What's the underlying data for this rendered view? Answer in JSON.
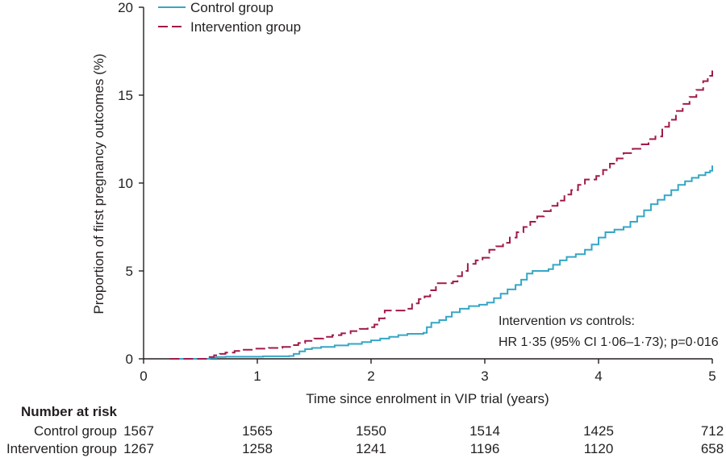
{
  "chart_data": {
    "type": "line",
    "step": true,
    "xlabel": "Time since enrolment in VIP trial (years)",
    "ylabel": "Proportion of first pregnancy outcomes (%)",
    "xlim": [
      0,
      5
    ],
    "ylim": [
      0,
      20
    ],
    "xticks": [
      0,
      1,
      2,
      3,
      4,
      5
    ],
    "yticks": [
      0,
      5,
      10,
      15,
      20
    ],
    "grid": false,
    "legend_position": "top-left",
    "series": [
      {
        "name": "Control group",
        "color": "#36a6c6",
        "dashed": false,
        "x": [
          0.23,
          0.58,
          0.64,
          0.72,
          1.05,
          1.28,
          1.32,
          1.37,
          1.42,
          1.48,
          1.56,
          1.68,
          1.8,
          1.92,
          2.0,
          2.08,
          2.16,
          2.24,
          2.32,
          2.46,
          2.49,
          2.53,
          2.6,
          2.66,
          2.71,
          2.78,
          2.86,
          2.95,
          3.02,
          3.08,
          3.14,
          3.2,
          3.27,
          3.32,
          3.37,
          3.42,
          3.56,
          3.6,
          3.66,
          3.72,
          3.8,
          3.88,
          3.94,
          4.0,
          4.06,
          4.14,
          4.22,
          4.28,
          4.34,
          4.4,
          4.46,
          4.52,
          4.58,
          4.64,
          4.7,
          4.76,
          4.82,
          4.88,
          4.94,
          4.98,
          5.0
        ],
        "y": [
          0,
          0.05,
          0.1,
          0.12,
          0.14,
          0.16,
          0.28,
          0.42,
          0.55,
          0.62,
          0.68,
          0.76,
          0.85,
          0.95,
          1.05,
          1.15,
          1.25,
          1.35,
          1.42,
          1.48,
          1.8,
          2.05,
          2.2,
          2.4,
          2.65,
          2.85,
          3.0,
          3.08,
          3.2,
          3.45,
          3.7,
          3.95,
          4.2,
          4.5,
          4.85,
          5.0,
          5.1,
          5.35,
          5.6,
          5.8,
          5.95,
          6.2,
          6.5,
          6.9,
          7.2,
          7.35,
          7.5,
          7.8,
          8.1,
          8.45,
          8.8,
          9.05,
          9.3,
          9.6,
          9.9,
          10.1,
          10.3,
          10.45,
          10.6,
          10.7,
          11.0
        ]
      },
      {
        "name": "Intervention group",
        "color": "#a01a4c",
        "dashed": true,
        "x": [
          0.23,
          0.58,
          0.62,
          0.67,
          0.72,
          0.8,
          0.88,
          0.96,
          1.1,
          1.22,
          1.3,
          1.36,
          1.42,
          1.5,
          1.58,
          1.66,
          1.74,
          1.82,
          1.9,
          1.97,
          2.03,
          2.07,
          2.12,
          2.32,
          2.36,
          2.42,
          2.47,
          2.52,
          2.57,
          2.72,
          2.76,
          2.8,
          2.85,
          2.92,
          2.98,
          3.04,
          3.1,
          3.16,
          3.22,
          3.28,
          3.34,
          3.4,
          3.46,
          3.52,
          3.58,
          3.64,
          3.7,
          3.76,
          3.82,
          3.88,
          3.98,
          4.04,
          4.1,
          4.16,
          4.22,
          4.3,
          4.38,
          4.44,
          4.5,
          4.56,
          4.62,
          4.68,
          4.74,
          4.8,
          4.86,
          4.92,
          4.96,
          5.0
        ],
        "y": [
          0,
          0.1,
          0.2,
          0.28,
          0.36,
          0.45,
          0.52,
          0.58,
          0.62,
          0.68,
          0.78,
          0.9,
          1.02,
          1.15,
          1.25,
          1.35,
          1.45,
          1.58,
          1.7,
          1.8,
          1.95,
          2.3,
          2.75,
          2.85,
          3.15,
          3.4,
          3.55,
          3.9,
          4.3,
          4.4,
          4.7,
          5.0,
          5.4,
          5.6,
          5.75,
          6.2,
          6.4,
          6.6,
          6.9,
          7.2,
          7.5,
          7.8,
          8.1,
          8.4,
          8.7,
          9.0,
          9.35,
          9.6,
          9.9,
          10.2,
          10.4,
          10.75,
          11.1,
          11.4,
          11.7,
          11.95,
          12.2,
          12.5,
          12.65,
          13.2,
          13.6,
          14.1,
          14.5,
          14.9,
          15.3,
          15.8,
          16.1,
          16.4
        ]
      }
    ],
    "annotation": {
      "line1_before": "Intervention",
      "line1_italic": "vs",
      "line1_after": "controls:",
      "line2": "HR 1·35 (95% CI 1·06–1·73); p=0·016"
    },
    "number_at_risk": {
      "heading": "Number at risk",
      "rows": [
        {
          "label": "Control group",
          "values": [
            1567,
            1565,
            1550,
            1514,
            1425,
            712
          ]
        },
        {
          "label": "Intervention group",
          "values": [
            1267,
            1258,
            1241,
            1196,
            1120,
            658
          ]
        }
      ]
    }
  }
}
